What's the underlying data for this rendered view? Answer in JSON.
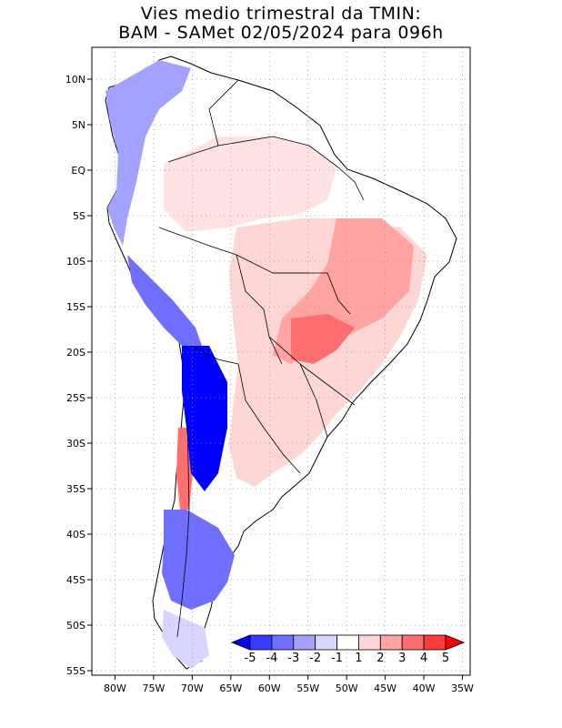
{
  "title": {
    "line1": "Vies medio trimestral da TMIN:",
    "line2": "BAM - SAMet 02/05/2024  para 096h"
  },
  "map": {
    "lat_labels": [
      "10N",
      "5N",
      "EQ",
      "5S",
      "10S",
      "15S",
      "20S",
      "25S",
      "30S",
      "35S",
      "40S",
      "45S",
      "50S",
      "55S"
    ],
    "lat_values": [
      10,
      5,
      0,
      -5,
      -10,
      -15,
      -20,
      -25,
      -30,
      -35,
      -40,
      -45,
      -50,
      -55
    ],
    "lon_labels": [
      "80W",
      "75W",
      "70W",
      "65W",
      "60W",
      "55W",
      "50W",
      "45W",
      "40W",
      "35W"
    ],
    "lon_values": [
      -80,
      -75,
      -70,
      -65,
      -60,
      -55,
      -50,
      -45,
      -40,
      -35
    ],
    "lat_range": [
      -55.5,
      13.5
    ],
    "lon_range": [
      -83,
      -34
    ],
    "grid": "dotted"
  },
  "colorbar": {
    "labels": [
      "-5",
      "-4",
      "-3",
      "-2",
      "-1",
      "1",
      "2",
      "3",
      "4",
      "5"
    ],
    "colors": [
      "#0000ff",
      "#3b3bff",
      "#6e6eff",
      "#a3a3ff",
      "#d6d6ff",
      "#ffffff",
      "#ffd6d6",
      "#ffa3a3",
      "#ff6e6e",
      "#ff3b3b",
      "#ff0000"
    ]
  }
}
